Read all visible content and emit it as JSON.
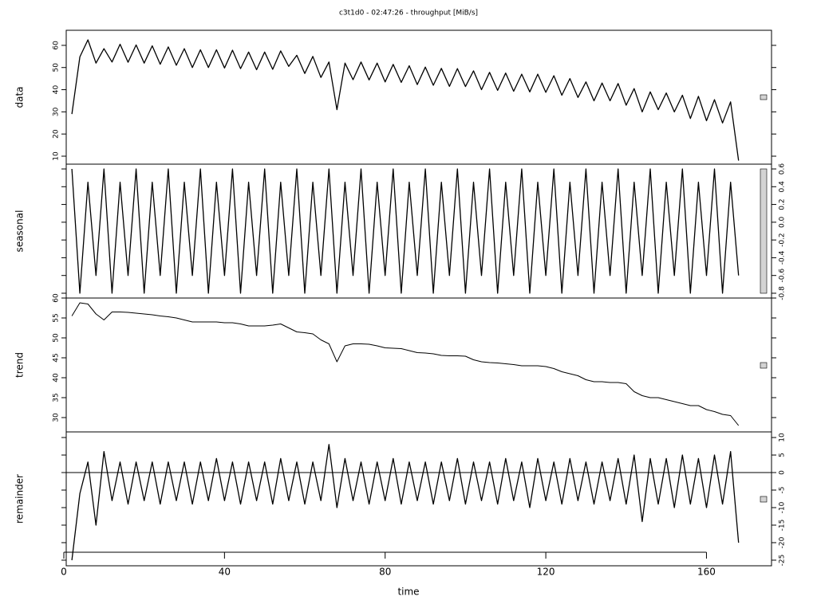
{
  "chart_data": [
    {
      "type": "line",
      "title": "c3t1d0 - 02:47:26 - throughput [MiB/s]",
      "ylabel": "data",
      "color": "#000000",
      "tick_side": "left",
      "xlim": [
        0,
        176
      ],
      "ylim": [
        6.4,
        66.8
      ],
      "yticks": [
        10,
        20,
        30,
        40,
        50,
        60
      ],
      "x": [
        2,
        4,
        6,
        8,
        10,
        12,
        14,
        16,
        18,
        20,
        22,
        24,
        26,
        28,
        30,
        32,
        34,
        36,
        38,
        40,
        42,
        44,
        46,
        48,
        50,
        52,
        54,
        56,
        58,
        60,
        62,
        64,
        66,
        68,
        70,
        72,
        74,
        76,
        78,
        80,
        82,
        84,
        86,
        88,
        90,
        92,
        94,
        96,
        98,
        100,
        102,
        104,
        106,
        108,
        110,
        112,
        114,
        116,
        118,
        120,
        122,
        124,
        126,
        128,
        130,
        132,
        134,
        136,
        138,
        140,
        142,
        144,
        146,
        148,
        150,
        152,
        154,
        156,
        158,
        160,
        162,
        164,
        166,
        168
      ],
      "values": [
        29,
        54.8,
        62.5,
        52,
        58.5,
        52.5,
        60.5,
        52.4,
        60.2,
        52,
        59.8,
        51.5,
        59.3,
        51,
        58.5,
        50,
        58,
        50,
        58,
        49.8,
        57.8,
        49.5,
        57,
        49,
        57,
        49.2,
        57.5,
        50.5,
        55.5,
        47.3,
        55,
        45.5,
        52.5,
        31,
        52,
        44.5,
        52.5,
        44.4,
        52,
        43.5,
        51.4,
        43.3,
        50.8,
        42.3,
        50.2,
        42,
        49.6,
        41.5,
        49.5,
        41.4,
        48.5,
        40,
        47.8,
        39.7,
        47.5,
        39.3,
        47,
        39,
        47,
        38.8,
        46.3,
        37.5,
        45,
        36.5,
        43.5,
        35,
        43,
        35,
        42.8,
        33,
        40.5,
        30,
        39,
        31,
        38.5,
        30,
        37.5,
        27,
        37,
        26,
        35.5,
        25,
        34.5,
        8
      ]
    },
    {
      "type": "line",
      "ylabel": "seasonal",
      "color": "#000000",
      "tick_side": "right",
      "xlim": [
        0,
        176
      ],
      "ylim": [
        -0.854,
        0.654
      ],
      "yticks": [
        0.6,
        0.4,
        0.2,
        {
          "value": 0,
          "label": "0.0"
        },
        -0.2,
        -0.4,
        -0.6,
        -0.8
      ],
      "x": [
        2,
        4,
        6,
        8,
        10,
        12,
        14,
        16,
        18,
        20,
        22,
        24,
        26,
        28,
        30,
        32,
        34,
        36,
        38,
        40,
        42,
        44,
        46,
        48,
        50,
        52,
        54,
        56,
        58,
        60,
        62,
        64,
        66,
        68,
        70,
        72,
        74,
        76,
        78,
        80,
        82,
        84,
        86,
        88,
        90,
        92,
        94,
        96,
        98,
        100,
        102,
        104,
        106,
        108,
        110,
        112,
        114,
        116,
        118,
        120,
        122,
        124,
        126,
        128,
        130,
        132,
        134,
        136,
        138,
        140,
        142,
        144,
        146,
        148,
        150,
        152,
        154,
        156,
        158,
        160,
        162,
        164,
        166,
        168
      ],
      "values": [
        0.6,
        -0.8,
        0.45,
        -0.6,
        0.6,
        -0.8,
        0.45,
        -0.6,
        0.6,
        -0.8,
        0.45,
        -0.6,
        0.6,
        -0.8,
        0.45,
        -0.6,
        0.6,
        -0.8,
        0.45,
        -0.6,
        0.6,
        -0.8,
        0.45,
        -0.6,
        0.6,
        -0.8,
        0.45,
        -0.6,
        0.6,
        -0.8,
        0.45,
        -0.6,
        0.6,
        -0.8,
        0.45,
        -0.6,
        0.6,
        -0.8,
        0.45,
        -0.6,
        0.6,
        -0.8,
        0.45,
        -0.6,
        0.6,
        -0.8,
        0.45,
        -0.6,
        0.6,
        -0.8,
        0.45,
        -0.6,
        0.6,
        -0.8,
        0.45,
        -0.6,
        0.6,
        -0.8,
        0.45,
        -0.6,
        0.6,
        -0.8,
        0.45,
        -0.6,
        0.6,
        -0.8,
        0.45,
        -0.6,
        0.6,
        -0.8,
        0.45,
        -0.6,
        0.6,
        -0.8,
        0.45,
        -0.6,
        0.6,
        -0.8,
        0.45,
        -0.6,
        0.6,
        -0.8,
        0.45,
        -0.6
      ]
    },
    {
      "type": "line",
      "ylabel": "trend",
      "color": "#000000",
      "tick_side": "left",
      "xlim": [
        0,
        176
      ],
      "ylim": [
        26.4,
        60
      ],
      "yticks": [
        30,
        35,
        40,
        45,
        50,
        55,
        60
      ],
      "x": [
        2,
        4,
        6,
        8,
        10,
        12,
        14,
        16,
        18,
        20,
        22,
        24,
        26,
        28,
        30,
        32,
        34,
        36,
        38,
        40,
        42,
        44,
        46,
        48,
        50,
        52,
        54,
        56,
        58,
        60,
        62,
        64,
        66,
        68,
        70,
        72,
        74,
        76,
        78,
        80,
        82,
        84,
        86,
        88,
        90,
        92,
        94,
        96,
        98,
        100,
        102,
        104,
        106,
        108,
        110,
        112,
        114,
        116,
        118,
        120,
        122,
        124,
        126,
        128,
        130,
        132,
        134,
        136,
        138,
        140,
        142,
        144,
        146,
        148,
        150,
        152,
        154,
        156,
        158,
        160,
        162,
        164,
        166,
        168
      ],
      "values": [
        55.5,
        58.8,
        58.5,
        56,
        54.5,
        56.5,
        56.5,
        56.4,
        56.2,
        56,
        55.8,
        55.5,
        55.3,
        55,
        54.5,
        54,
        54,
        54,
        54,
        53.8,
        53.8,
        53.5,
        53,
        53,
        53,
        53.2,
        53.5,
        52.5,
        51.5,
        51.3,
        51,
        49.5,
        48.5,
        44,
        48,
        48.5,
        48.5,
        48.4,
        48,
        47.5,
        47.4,
        47.3,
        46.8,
        46.3,
        46.2,
        46,
        45.6,
        45.5,
        45.5,
        45.4,
        44.5,
        44,
        43.8,
        43.7,
        43.5,
        43.3,
        43,
        43,
        43,
        42.8,
        42.3,
        41.5,
        41,
        40.5,
        39.5,
        39,
        39,
        38.8,
        38.8,
        38.5,
        36.5,
        35.5,
        35,
        35,
        34.5,
        34,
        33.5,
        33,
        33,
        32,
        31.5,
        30.8,
        30.5,
        28
      ]
    },
    {
      "type": "line",
      "ylabel": "remainder",
      "xlabel": "time",
      "color": "#000000",
      "tick_side": "right",
      "zero_line": true,
      "xlim": [
        0,
        176
      ],
      "xticks": [
        0,
        40,
        80,
        120,
        160
      ],
      "ylim": [
        -26.6,
        11.6
      ],
      "yticks": [
        10,
        5,
        0,
        -5,
        -10,
        -15,
        -20,
        -25
      ],
      "x": [
        2,
        4,
        6,
        8,
        10,
        12,
        14,
        16,
        18,
        20,
        22,
        24,
        26,
        28,
        30,
        32,
        34,
        36,
        38,
        40,
        42,
        44,
        46,
        48,
        50,
        52,
        54,
        56,
        58,
        60,
        62,
        64,
        66,
        68,
        70,
        72,
        74,
        76,
        78,
        80,
        82,
        84,
        86,
        88,
        90,
        92,
        94,
        96,
        98,
        100,
        102,
        104,
        106,
        108,
        110,
        112,
        114,
        116,
        118,
        120,
        122,
        124,
        126,
        128,
        130,
        132,
        134,
        136,
        138,
        140,
        142,
        144,
        146,
        148,
        150,
        152,
        154,
        156,
        158,
        160,
        162,
        164,
        166,
        168
      ],
      "values": [
        -25,
        -6,
        3,
        -15,
        6,
        -8,
        3,
        -9,
        3,
        -8,
        3,
        -9,
        3,
        -8,
        3,
        -9,
        3,
        -8,
        4,
        -8,
        3,
        -9,
        3,
        -8,
        3,
        -9,
        4,
        -8,
        3,
        -9,
        3,
        -8,
        8,
        -10,
        4,
        -8,
        3,
        -9,
        3,
        -8,
        4,
        -9,
        3,
        -8,
        3,
        -9,
        3,
        -8,
        4,
        -9,
        3,
        -8,
        3,
        -9,
        4,
        -8,
        3,
        -10,
        4,
        -8,
        3,
        -9,
        4,
        -8,
        3,
        -9,
        3,
        -8,
        4,
        -9,
        5,
        -14,
        4,
        -9,
        4,
        -10,
        5,
        -9,
        4,
        -10,
        5,
        -9,
        6,
        -20
      ]
    }
  ]
}
